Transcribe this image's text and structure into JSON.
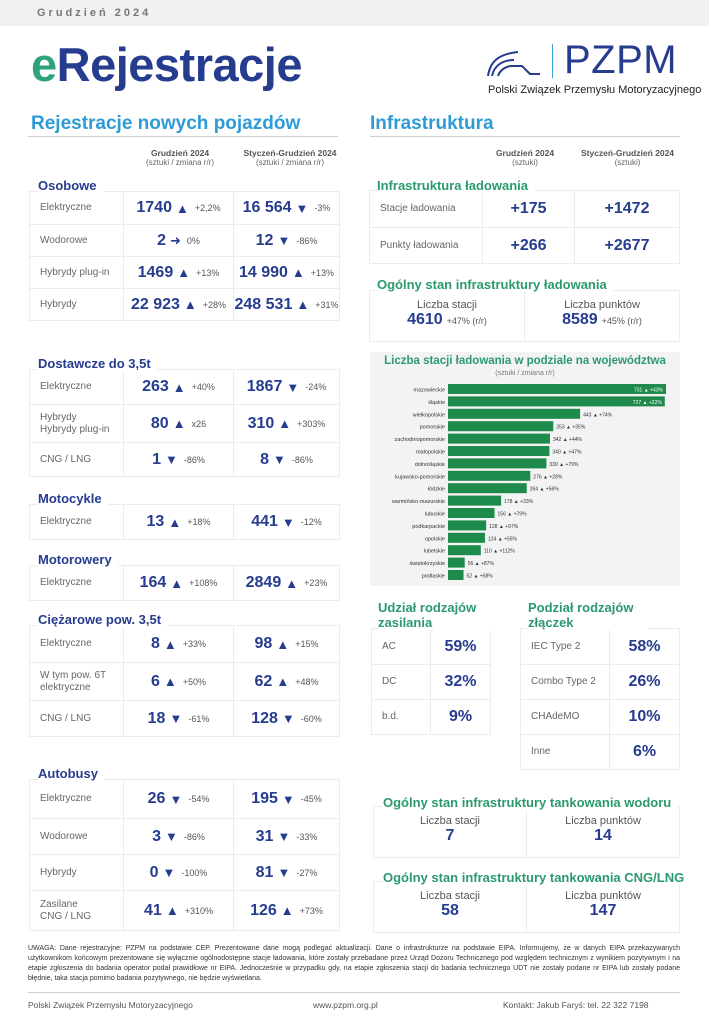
{
  "header": {
    "month": "Grudzień 2024",
    "brand_e": "e",
    "brand_rest": "Rejestracje",
    "logo_text": "PZPM",
    "logo_full": "Polski Związek Przemysłu Motoryzacyjnego"
  },
  "left": {
    "title": "Rejestracje nowych pojazdów",
    "col1_title": "Grudzień 2024",
    "col1_sub": "(sztuki / zmiana r/r)",
    "col2_title": "Styczeń-Grudzień 2024",
    "col2_sub": "(sztuki / zmiana r/r)",
    "groups": [
      {
        "title": "Osobowe",
        "rows": [
          {
            "label": "Elektryczne",
            "m_val": "1740",
            "m_dir": "up",
            "m_pct": "+2,2%",
            "y_val": "16 564",
            "y_dir": "down",
            "y_pct": "-3%"
          },
          {
            "label": "Wodorowe",
            "m_val": "2",
            "m_dir": "flat",
            "m_pct": "0%",
            "y_val": "12",
            "y_dir": "down",
            "y_pct": "-86%"
          },
          {
            "label": "Hybrydy plug-in",
            "m_val": "1469",
            "m_dir": "up",
            "m_pct": "+13%",
            "y_val": "14 990",
            "y_dir": "up",
            "y_pct": "+13%"
          },
          {
            "label": "Hybrydy",
            "m_val": "22 923",
            "m_dir": "up",
            "m_pct": "+28%",
            "y_val": "248 531",
            "y_dir": "up",
            "y_pct": "+31%"
          }
        ]
      },
      {
        "title": "Dostawcze do 3,5t",
        "rows": [
          {
            "label": "Elektryczne",
            "m_val": "263",
            "m_dir": "up",
            "m_pct": "+40%",
            "y_val": "1867",
            "y_dir": "down",
            "y_pct": "-24%"
          },
          {
            "label": "Hybrydy\nHybrydy plug-in",
            "m_val": "80",
            "m_dir": "up",
            "m_pct": "x26",
            "y_val": "310",
            "y_dir": "up",
            "y_pct": "+303%"
          },
          {
            "label": "CNG / LNG",
            "m_val": "1",
            "m_dir": "down",
            "m_pct": "-86%",
            "y_val": "8",
            "y_dir": "down",
            "y_pct": "-86%"
          }
        ]
      },
      {
        "title": "Motocykle",
        "rows": [
          {
            "label": "Elektryczne",
            "m_val": "13",
            "m_dir": "up",
            "m_pct": "+18%",
            "y_val": "441",
            "y_dir": "down",
            "y_pct": "-12%"
          }
        ]
      },
      {
        "title": "Motorowery",
        "rows": [
          {
            "label": "Elektryczne",
            "m_val": "164",
            "m_dir": "up",
            "m_pct": "+108%",
            "y_val": "2849",
            "y_dir": "up",
            "y_pct": "+23%"
          }
        ]
      },
      {
        "title": "Ciężarowe pow. 3,5t",
        "rows": [
          {
            "label": "Elektryczne",
            "m_val": "8",
            "m_dir": "up",
            "m_pct": "+33%",
            "y_val": "98",
            "y_dir": "up",
            "y_pct": "+15%"
          },
          {
            "label": "W tym pow. 6T\nelektryczne",
            "m_val": "6",
            "m_dir": "up",
            "m_pct": "+50%",
            "y_val": "62",
            "y_dir": "up",
            "y_pct": "+48%"
          },
          {
            "label": "CNG / LNG",
            "m_val": "18",
            "m_dir": "down",
            "m_pct": "-61%",
            "y_val": "128",
            "y_dir": "down",
            "y_pct": "-60%"
          }
        ]
      },
      {
        "title": "Autobusy",
        "rows": [
          {
            "label": "Elektryczne",
            "m_val": "26",
            "m_dir": "down",
            "m_pct": "-54%",
            "y_val": "195",
            "y_dir": "down",
            "y_pct": "-45%"
          },
          {
            "label": "Wodorowe",
            "m_val": "3",
            "m_dir": "down",
            "m_pct": "-86%",
            "y_val": "31",
            "y_dir": "down",
            "y_pct": "-33%"
          },
          {
            "label": "Hybrydy",
            "m_val": "0",
            "m_dir": "down",
            "m_pct": "-100%",
            "y_val": "81",
            "y_dir": "down",
            "y_pct": "-27%"
          },
          {
            "label": "Zasilane\nCNG / LNG",
            "m_val": "41",
            "m_dir": "up",
            "m_pct": "+310%",
            "y_val": "126",
            "y_dir": "up",
            "y_pct": "+73%"
          }
        ]
      }
    ]
  },
  "right": {
    "title": "Infrastruktura",
    "col1_title": "Grudzień 2024",
    "col1_sub": "(sztuki)",
    "col2_title": "Styczeń-Grudzień 2024",
    "col2_sub": "(sztuki)",
    "charging": {
      "title": "Infrastruktura  ładowania",
      "rows": [
        {
          "label": "Stacje ładowania",
          "m": "+175",
          "y": "+1472"
        },
        {
          "label": "Punkty ładowania",
          "m": "+266",
          "y": "+2677"
        }
      ]
    },
    "overall": {
      "title": "Ogólny stan infrastruktury ładowania",
      "stations_label": "Liczba stacji",
      "stations_value": "4610",
      "stations_change": "+47% (r/r)",
      "points_label": "Liczba punktów",
      "points_value": "8589",
      "points_change": "+45% (r/r)"
    },
    "power_share": {
      "title": "Udział rodzajów zasilania",
      "rows": [
        {
          "label": "AC",
          "value": "59%"
        },
        {
          "label": "DC",
          "value": "32%"
        },
        {
          "label": "b.d.",
          "value": "9%"
        }
      ]
    },
    "connectors": {
      "title": "Podział rodzajów złączek",
      "rows": [
        {
          "label": "IEC Type 2",
          "value": "58%"
        },
        {
          "label": "Combo Type 2",
          "value": "26%"
        },
        {
          "label": "CHAdeMO",
          "value": "10%"
        },
        {
          "label": "Inne",
          "value": "6%"
        }
      ]
    },
    "hydrogen": {
      "title": "Ogólny stan infrastruktury tankowania wodoru",
      "stations_label": "Liczba stacji",
      "stations_value": "7",
      "points_label": "Liczba punktów",
      "points_value": "14"
    },
    "cng": {
      "title": "Ogólny stan infrastruktury tankowania CNG/LNG",
      "stations_label": "Liczba stacji",
      "stations_value": "58",
      "points_label": "Liczba punktów",
      "points_value": "147"
    }
  },
  "chart_data": {
    "type": "bar",
    "orientation": "horizontal",
    "title": "Liczba stacji ładowania w podziale na województwa",
    "subtitle": "(sztuki / zmiana r/r)",
    "categories": [
      "mazowieckie",
      "śląskie",
      "wielkopolskie",
      "pomorskie",
      "zachodniopomorskie",
      "małopolskie",
      "dolnośląskie",
      "kujawsko-pomorskie",
      "łódzkie",
      "warmińsko-mazurskie",
      "lubuskie",
      "podkarpackie",
      "opolskie",
      "lubelskie",
      "świętokrzyskie",
      "podlaskie"
    ],
    "values": [
      731,
      727,
      443,
      353,
      342,
      340,
      330,
      276,
      264,
      178,
      156,
      128,
      124,
      110,
      56,
      52
    ],
    "changes": [
      "+43%",
      "+22%",
      "+74%",
      "+35%",
      "+44%",
      "+47%",
      "+79%",
      "+28%",
      "+56%",
      "+33%",
      "+79%",
      "+97%",
      "+55%",
      "+112%",
      "+87%",
      "+68%"
    ],
    "bar_color": "#1e8a4c",
    "xlim": [
      0,
      731
    ],
    "grid": false,
    "legend": "none"
  },
  "note": "UWAGA: Dane rejestracyjne: PZPM na podstawie CEP. Prezentowane dane mogą podlegać aktualizacji. Dane o infrastrukturze na podstawie EIPA. Informujemy, że w danych EIPA przekazywanych użytkownikom końcowym prezentowane się wyłącznie ogólnodostępne stacje ładowania, które zostały przebadane przez Urząd Dozoru Technicznego pod względem technicznym z wynikiem pozytywnym i na etapie zgłoszenia do badania operator podał prawidłowe nr EIPA. Jednocześnie w przypadku gdy, na etapie zgłoszenia stacji do badania technicznego UDT nie zostały podane nr EIPA lub zostały podane błędnie, taka stacja pomimo badania pozytywnego, nie będzie wyświetlana.",
  "footer": {
    "org": "Polski Związek Przemysłu Motoryzacyjnego",
    "url": "www.pzpm.org.pl",
    "contact": "Kontakt: Jakub Faryś: tel. 22 322 7198"
  },
  "arrows": {
    "up": "▲",
    "down": "▼",
    "flat": "➜"
  }
}
